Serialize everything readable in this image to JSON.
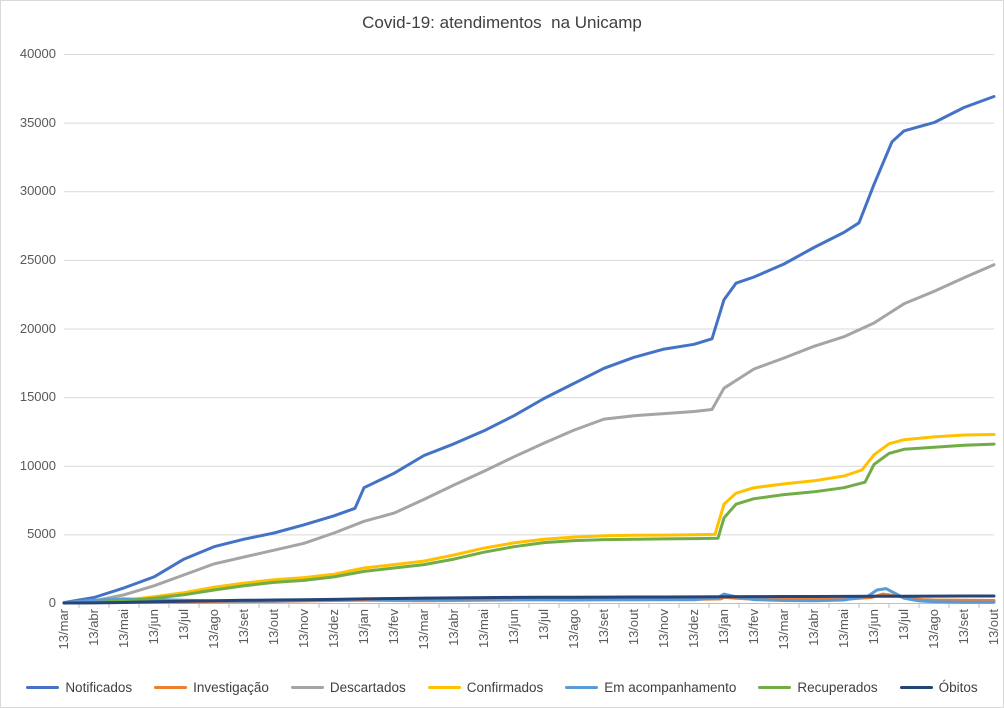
{
  "title": "Covid-19: atendimentos  na Unicamp",
  "colors": {
    "gridline": "#d9d9d9",
    "axis": "#bfbfbf",
    "label_text": "#595959",
    "title_text": "#404040"
  },
  "chart_data": {
    "type": "line",
    "title": "Covid-19: atendimentos  na Unicamp",
    "xlabel": "",
    "ylabel": "",
    "ylim": [
      0,
      40000
    ],
    "grid": "horizontal",
    "legend_position": "bottom",
    "y_ticks": [
      0,
      5000,
      10000,
      15000,
      20000,
      25000,
      30000,
      35000,
      40000
    ],
    "x_tick_labels": [
      "13/mar",
      "13/abr",
      "13/mai",
      "13/jun",
      "13/jul",
      "13/ago",
      "13/set",
      "13/out",
      "13/nov",
      "13/dez",
      "13/jan",
      "13/fev",
      "13/mar",
      "13/abr",
      "13/mai",
      "13/jun",
      "13/jul",
      "13/ago",
      "13/set",
      "13/out",
      "13/nov",
      "13/dez",
      "13/jan",
      "13/fev",
      "13/mar",
      "13/abr",
      "13/mai",
      "13/jun",
      "13/jul",
      "13/ago",
      "13/set",
      "13/out"
    ],
    "series": [
      {
        "name": "Notificados",
        "color": "#4472C4",
        "points": [
          [
            0,
            30
          ],
          [
            1,
            400
          ],
          [
            2,
            1100
          ],
          [
            3,
            1900
          ],
          [
            4,
            3200
          ],
          [
            5,
            4100
          ],
          [
            6,
            4650
          ],
          [
            7,
            5100
          ],
          [
            8,
            5700
          ],
          [
            9,
            6350
          ],
          [
            9.7,
            6900
          ],
          [
            10,
            8400
          ],
          [
            11,
            9450
          ],
          [
            12,
            10750
          ],
          [
            13,
            11600
          ],
          [
            14,
            12550
          ],
          [
            15,
            13650
          ],
          [
            16,
            14900
          ],
          [
            17,
            16000
          ],
          [
            18,
            17100
          ],
          [
            19,
            17900
          ],
          [
            20,
            18500
          ],
          [
            21,
            18850
          ],
          [
            21.6,
            19250
          ],
          [
            22,
            22100
          ],
          [
            22.4,
            23300
          ],
          [
            23,
            23750
          ],
          [
            24,
            24700
          ],
          [
            25,
            25900
          ],
          [
            26,
            27000
          ],
          [
            26.5,
            27700
          ],
          [
            27,
            30500
          ],
          [
            27.6,
            33600
          ],
          [
            28,
            34400
          ],
          [
            28.5,
            34700
          ],
          [
            29,
            35000
          ],
          [
            30,
            36100
          ],
          [
            31,
            36900
          ]
        ]
      },
      {
        "name": "Investigação",
        "color": "#ED7D31",
        "points": [
          [
            0,
            20
          ],
          [
            1,
            80
          ],
          [
            2,
            60
          ],
          [
            3,
            50
          ],
          [
            4,
            60
          ],
          [
            5,
            80
          ],
          [
            6,
            100
          ],
          [
            7,
            120
          ],
          [
            8,
            150
          ],
          [
            9,
            180
          ],
          [
            10,
            200
          ],
          [
            11,
            180
          ],
          [
            12,
            170
          ],
          [
            13,
            180
          ],
          [
            14,
            200
          ],
          [
            15,
            220
          ],
          [
            16,
            230
          ],
          [
            17,
            240
          ],
          [
            18,
            250
          ],
          [
            19,
            250
          ],
          [
            20,
            260
          ],
          [
            21,
            260
          ],
          [
            21.9,
            300
          ],
          [
            22,
            420
          ],
          [
            22.4,
            350
          ],
          [
            23,
            280
          ],
          [
            24,
            260
          ],
          [
            25,
            260
          ],
          [
            26,
            280
          ],
          [
            26.9,
            400
          ],
          [
            27.3,
            650
          ],
          [
            27.8,
            500
          ],
          [
            28,
            400
          ],
          [
            28.6,
            250
          ],
          [
            29,
            220
          ],
          [
            30,
            200
          ],
          [
            31,
            180
          ]
        ]
      },
      {
        "name": "Descartados",
        "color": "#A5A5A5",
        "points": [
          [
            0,
            10
          ],
          [
            1,
            150
          ],
          [
            2,
            600
          ],
          [
            3,
            1250
          ],
          [
            4,
            2050
          ],
          [
            5,
            2850
          ],
          [
            6,
            3350
          ],
          [
            7,
            3850
          ],
          [
            8,
            4350
          ],
          [
            9,
            5100
          ],
          [
            10,
            5950
          ],
          [
            11,
            6550
          ],
          [
            12,
            7550
          ],
          [
            13,
            8600
          ],
          [
            14,
            9600
          ],
          [
            15,
            10650
          ],
          [
            16,
            11650
          ],
          [
            17,
            12600
          ],
          [
            18,
            13400
          ],
          [
            19,
            13650
          ],
          [
            20,
            13800
          ],
          [
            21,
            13950
          ],
          [
            21.6,
            14100
          ],
          [
            22,
            15650
          ],
          [
            23,
            17050
          ],
          [
            24,
            17850
          ],
          [
            25,
            18700
          ],
          [
            26,
            19400
          ],
          [
            27,
            20400
          ],
          [
            28,
            21800
          ],
          [
            29,
            22700
          ],
          [
            30,
            23700
          ],
          [
            31,
            24650
          ]
        ]
      },
      {
        "name": "Confirmados",
        "color": "#FFC000",
        "points": [
          [
            0,
            10
          ],
          [
            1,
            60
          ],
          [
            2,
            200
          ],
          [
            3,
            450
          ],
          [
            4,
            750
          ],
          [
            5,
            1150
          ],
          [
            6,
            1450
          ],
          [
            7,
            1700
          ],
          [
            8,
            1850
          ],
          [
            9,
            2100
          ],
          [
            10,
            2550
          ],
          [
            11,
            2800
          ],
          [
            12,
            3050
          ],
          [
            13,
            3500
          ],
          [
            14,
            4000
          ],
          [
            15,
            4380
          ],
          [
            16,
            4650
          ],
          [
            17,
            4800
          ],
          [
            18,
            4900
          ],
          [
            19,
            4930
          ],
          [
            20,
            4950
          ],
          [
            21,
            4970
          ],
          [
            21.7,
            5000
          ],
          [
            22,
            7200
          ],
          [
            22.4,
            8000
          ],
          [
            23,
            8400
          ],
          [
            24,
            8680
          ],
          [
            25,
            8900
          ],
          [
            26,
            9250
          ],
          [
            26.6,
            9700
          ],
          [
            27,
            10800
          ],
          [
            27.5,
            11600
          ],
          [
            28,
            11900
          ],
          [
            29,
            12100
          ],
          [
            30,
            12240
          ],
          [
            31,
            12280
          ]
        ]
      },
      {
        "name": "Em acompanhamento",
        "color": "#5B9BD5",
        "points": [
          [
            0,
            30
          ],
          [
            1,
            200
          ],
          [
            2,
            300
          ],
          [
            3,
            250
          ],
          [
            4,
            200
          ],
          [
            5,
            150
          ],
          [
            6,
            130
          ],
          [
            7,
            140
          ],
          [
            8,
            180
          ],
          [
            9,
            220
          ],
          [
            10,
            300
          ],
          [
            11,
            230
          ],
          [
            12,
            220
          ],
          [
            13,
            260
          ],
          [
            14,
            280
          ],
          [
            15,
            260
          ],
          [
            16,
            230
          ],
          [
            17,
            220
          ],
          [
            18,
            240
          ],
          [
            19,
            230
          ],
          [
            20,
            230
          ],
          [
            21,
            240
          ],
          [
            21.8,
            400
          ],
          [
            22,
            650
          ],
          [
            22.3,
            500
          ],
          [
            23,
            250
          ],
          [
            24,
            180
          ],
          [
            25,
            160
          ],
          [
            26,
            220
          ],
          [
            26.8,
            500
          ],
          [
            27.1,
            950
          ],
          [
            27.4,
            1050
          ],
          [
            27.8,
            600
          ],
          [
            28,
            350
          ],
          [
            28.5,
            150
          ],
          [
            29,
            90
          ],
          [
            30,
            60
          ],
          [
            31,
            60
          ]
        ]
      },
      {
        "name": "Recuperados",
        "color": "#70AD47",
        "points": [
          [
            0,
            0
          ],
          [
            1,
            40
          ],
          [
            2,
            150
          ],
          [
            3,
            350
          ],
          [
            4,
            600
          ],
          [
            5,
            950
          ],
          [
            6,
            1250
          ],
          [
            7,
            1500
          ],
          [
            8,
            1650
          ],
          [
            9,
            1900
          ],
          [
            10,
            2300
          ],
          [
            11,
            2550
          ],
          [
            12,
            2800
          ],
          [
            13,
            3200
          ],
          [
            14,
            3700
          ],
          [
            15,
            4100
          ],
          [
            16,
            4400
          ],
          [
            17,
            4550
          ],
          [
            18,
            4620
          ],
          [
            19,
            4650
          ],
          [
            20,
            4670
          ],
          [
            21,
            4690
          ],
          [
            21.8,
            4720
          ],
          [
            22,
            6200
          ],
          [
            22.4,
            7200
          ],
          [
            23,
            7600
          ],
          [
            24,
            7900
          ],
          [
            25,
            8100
          ],
          [
            26,
            8400
          ],
          [
            26.7,
            8800
          ],
          [
            27,
            10100
          ],
          [
            27.5,
            10900
          ],
          [
            28,
            11200
          ],
          [
            29,
            11350
          ],
          [
            30,
            11500
          ],
          [
            31,
            11580
          ]
        ]
      },
      {
        "name": "Óbitos",
        "color": "#264478",
        "points": [
          [
            0,
            0
          ],
          [
            1,
            10
          ],
          [
            2,
            40
          ],
          [
            3,
            90
          ],
          [
            4,
            130
          ],
          [
            5,
            170
          ],
          [
            6,
            200
          ],
          [
            7,
            220
          ],
          [
            8,
            240
          ],
          [
            9,
            260
          ],
          [
            10,
            300
          ],
          [
            11,
            330
          ],
          [
            12,
            355
          ],
          [
            13,
            375
          ],
          [
            14,
            395
          ],
          [
            15,
            405
          ],
          [
            16,
            415
          ],
          [
            17,
            425
          ],
          [
            18,
            432
          ],
          [
            19,
            436
          ],
          [
            20,
            440
          ],
          [
            21,
            444
          ],
          [
            22,
            458
          ],
          [
            23,
            465
          ],
          [
            24,
            470
          ],
          [
            25,
            474
          ],
          [
            26,
            478
          ],
          [
            27,
            488
          ],
          [
            28,
            498
          ],
          [
            29,
            503
          ],
          [
            30,
            507
          ],
          [
            31,
            510
          ]
        ]
      }
    ]
  }
}
